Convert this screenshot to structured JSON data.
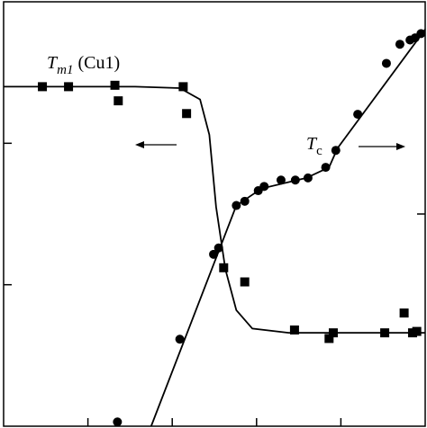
{
  "chart_data": {
    "type": "scatter",
    "xlim": [
      0,
      5
    ],
    "xticks": [
      1,
      2,
      3,
      4
    ],
    "ylim": [
      0,
      3
    ],
    "yticks": [
      1,
      2
    ],
    "y2lim": [
      0,
      2
    ],
    "y2ticks": [
      1
    ],
    "annotations": [
      {
        "text": "T",
        "sub": "m1",
        "suffix": "(Cu1)"
      },
      {
        "text": "T",
        "sub": "c"
      }
    ],
    "series": [
      {
        "marker": "square",
        "color": "#000000",
        "x": [
          0.46,
          0.77,
          1.32,
          1.36,
          2.13,
          2.17,
          2.61,
          2.86,
          3.45,
          3.86,
          3.91,
          4.52,
          4.75,
          4.85,
          4.9
        ],
        "values": [
          2.4,
          2.4,
          2.41,
          2.3,
          2.4,
          2.21,
          1.12,
          1.02,
          0.68,
          0.62,
          0.66,
          0.66,
          0.8,
          0.66,
          0.67
        ]
      },
      {
        "marker": "circle",
        "color": "#000000",
        "axis": "y2",
        "x": [
          1.35,
          2.09,
          2.49,
          2.55,
          2.76,
          2.86,
          3.02,
          3.09,
          3.29,
          3.46,
          3.61,
          3.82,
          3.94,
          4.2,
          4.54,
          4.7,
          4.82,
          4.88,
          4.95
        ],
        "values": [
          0.02,
          0.41,
          0.81,
          0.84,
          1.04,
          1.06,
          1.11,
          1.13,
          1.16,
          1.16,
          1.17,
          1.22,
          1.3,
          1.47,
          1.71,
          1.8,
          1.82,
          1.83,
          1.85
        ]
      }
    ],
    "curves": [
      {
        "color": "#000000",
        "x": [
          0,
          1.56,
          2.09,
          2.33,
          2.44,
          2.52,
          2.63,
          2.76,
          2.95,
          3.38,
          5
        ],
        "values": [
          2.4,
          2.4,
          2.39,
          2.31,
          2.06,
          1.55,
          1.11,
          0.82,
          0.69,
          0.66,
          0.66
        ]
      },
      {
        "color": "#000000",
        "axis": "y2",
        "x": [
          1.75,
          2.76,
          3.06,
          3.59,
          3.86,
          3.96,
          5
        ],
        "values": [
          0,
          1.04,
          1.12,
          1.17,
          1.22,
          1.31,
          1.87
        ]
      }
    ]
  }
}
